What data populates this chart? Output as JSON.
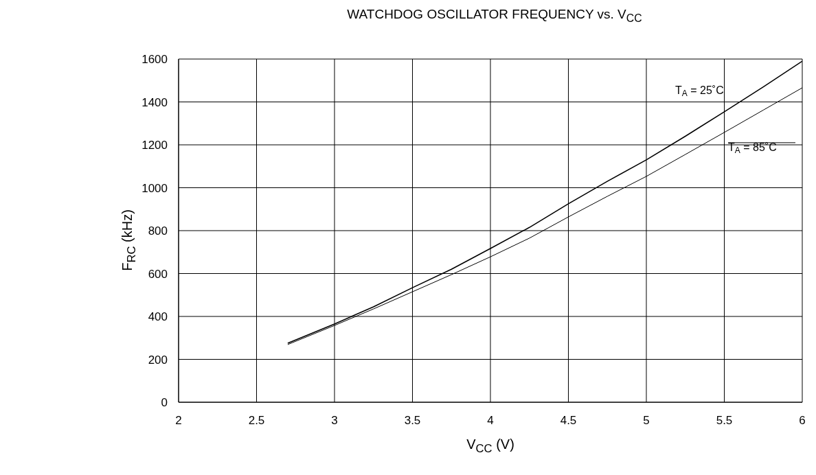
{
  "chart_data": {
    "type": "line",
    "title": "WATCHDOG OSCILLATOR FREQUENCY vs. V$_{CC}$",
    "xlabel": "V$_{CC}$ (V)",
    "ylabel": "F$_{RC}$ (kHz)",
    "series": [
      {
        "name": "T$_{A}$ = 25˚C",
        "color": "#000000",
        "x": [
          2.7,
          3,
          3.25,
          3.5,
          3.75,
          4,
          4.25,
          4.5,
          4.75,
          5,
          5.25,
          5.5,
          5.75,
          6
        ],
        "values": [
          275,
          365,
          445,
          534,
          620,
          717,
          815,
          925,
          1030,
          1130,
          1240,
          1354,
          1470,
          1590
        ]
      },
      {
        "name": "T$_{A}$ = 85˚C",
        "color": "#000000",
        "x": [
          2.7,
          3,
          3.25,
          3.5,
          3.75,
          4,
          4.25,
          4.5,
          4.75,
          5,
          5.25,
          5.5,
          5.75,
          6
        ],
        "values": [
          269,
          358,
          435,
          515,
          595,
          678,
          765,
          864,
          960,
          1053,
          1155,
          1258,
          1362,
          1466
        ]
      }
    ],
    "xlim": [
      2,
      6
    ],
    "xticks": [
      2,
      2.5,
      3,
      3.5,
      4,
      4.5,
      5,
      5.5,
      6
    ],
    "ylim": [
      0,
      1600
    ],
    "yticks": [
      0,
      200,
      400,
      600,
      800,
      1000,
      1200,
      1400,
      1600
    ],
    "grid": true,
    "legend": false,
    "marker": "none",
    "line_style": "solid"
  }
}
